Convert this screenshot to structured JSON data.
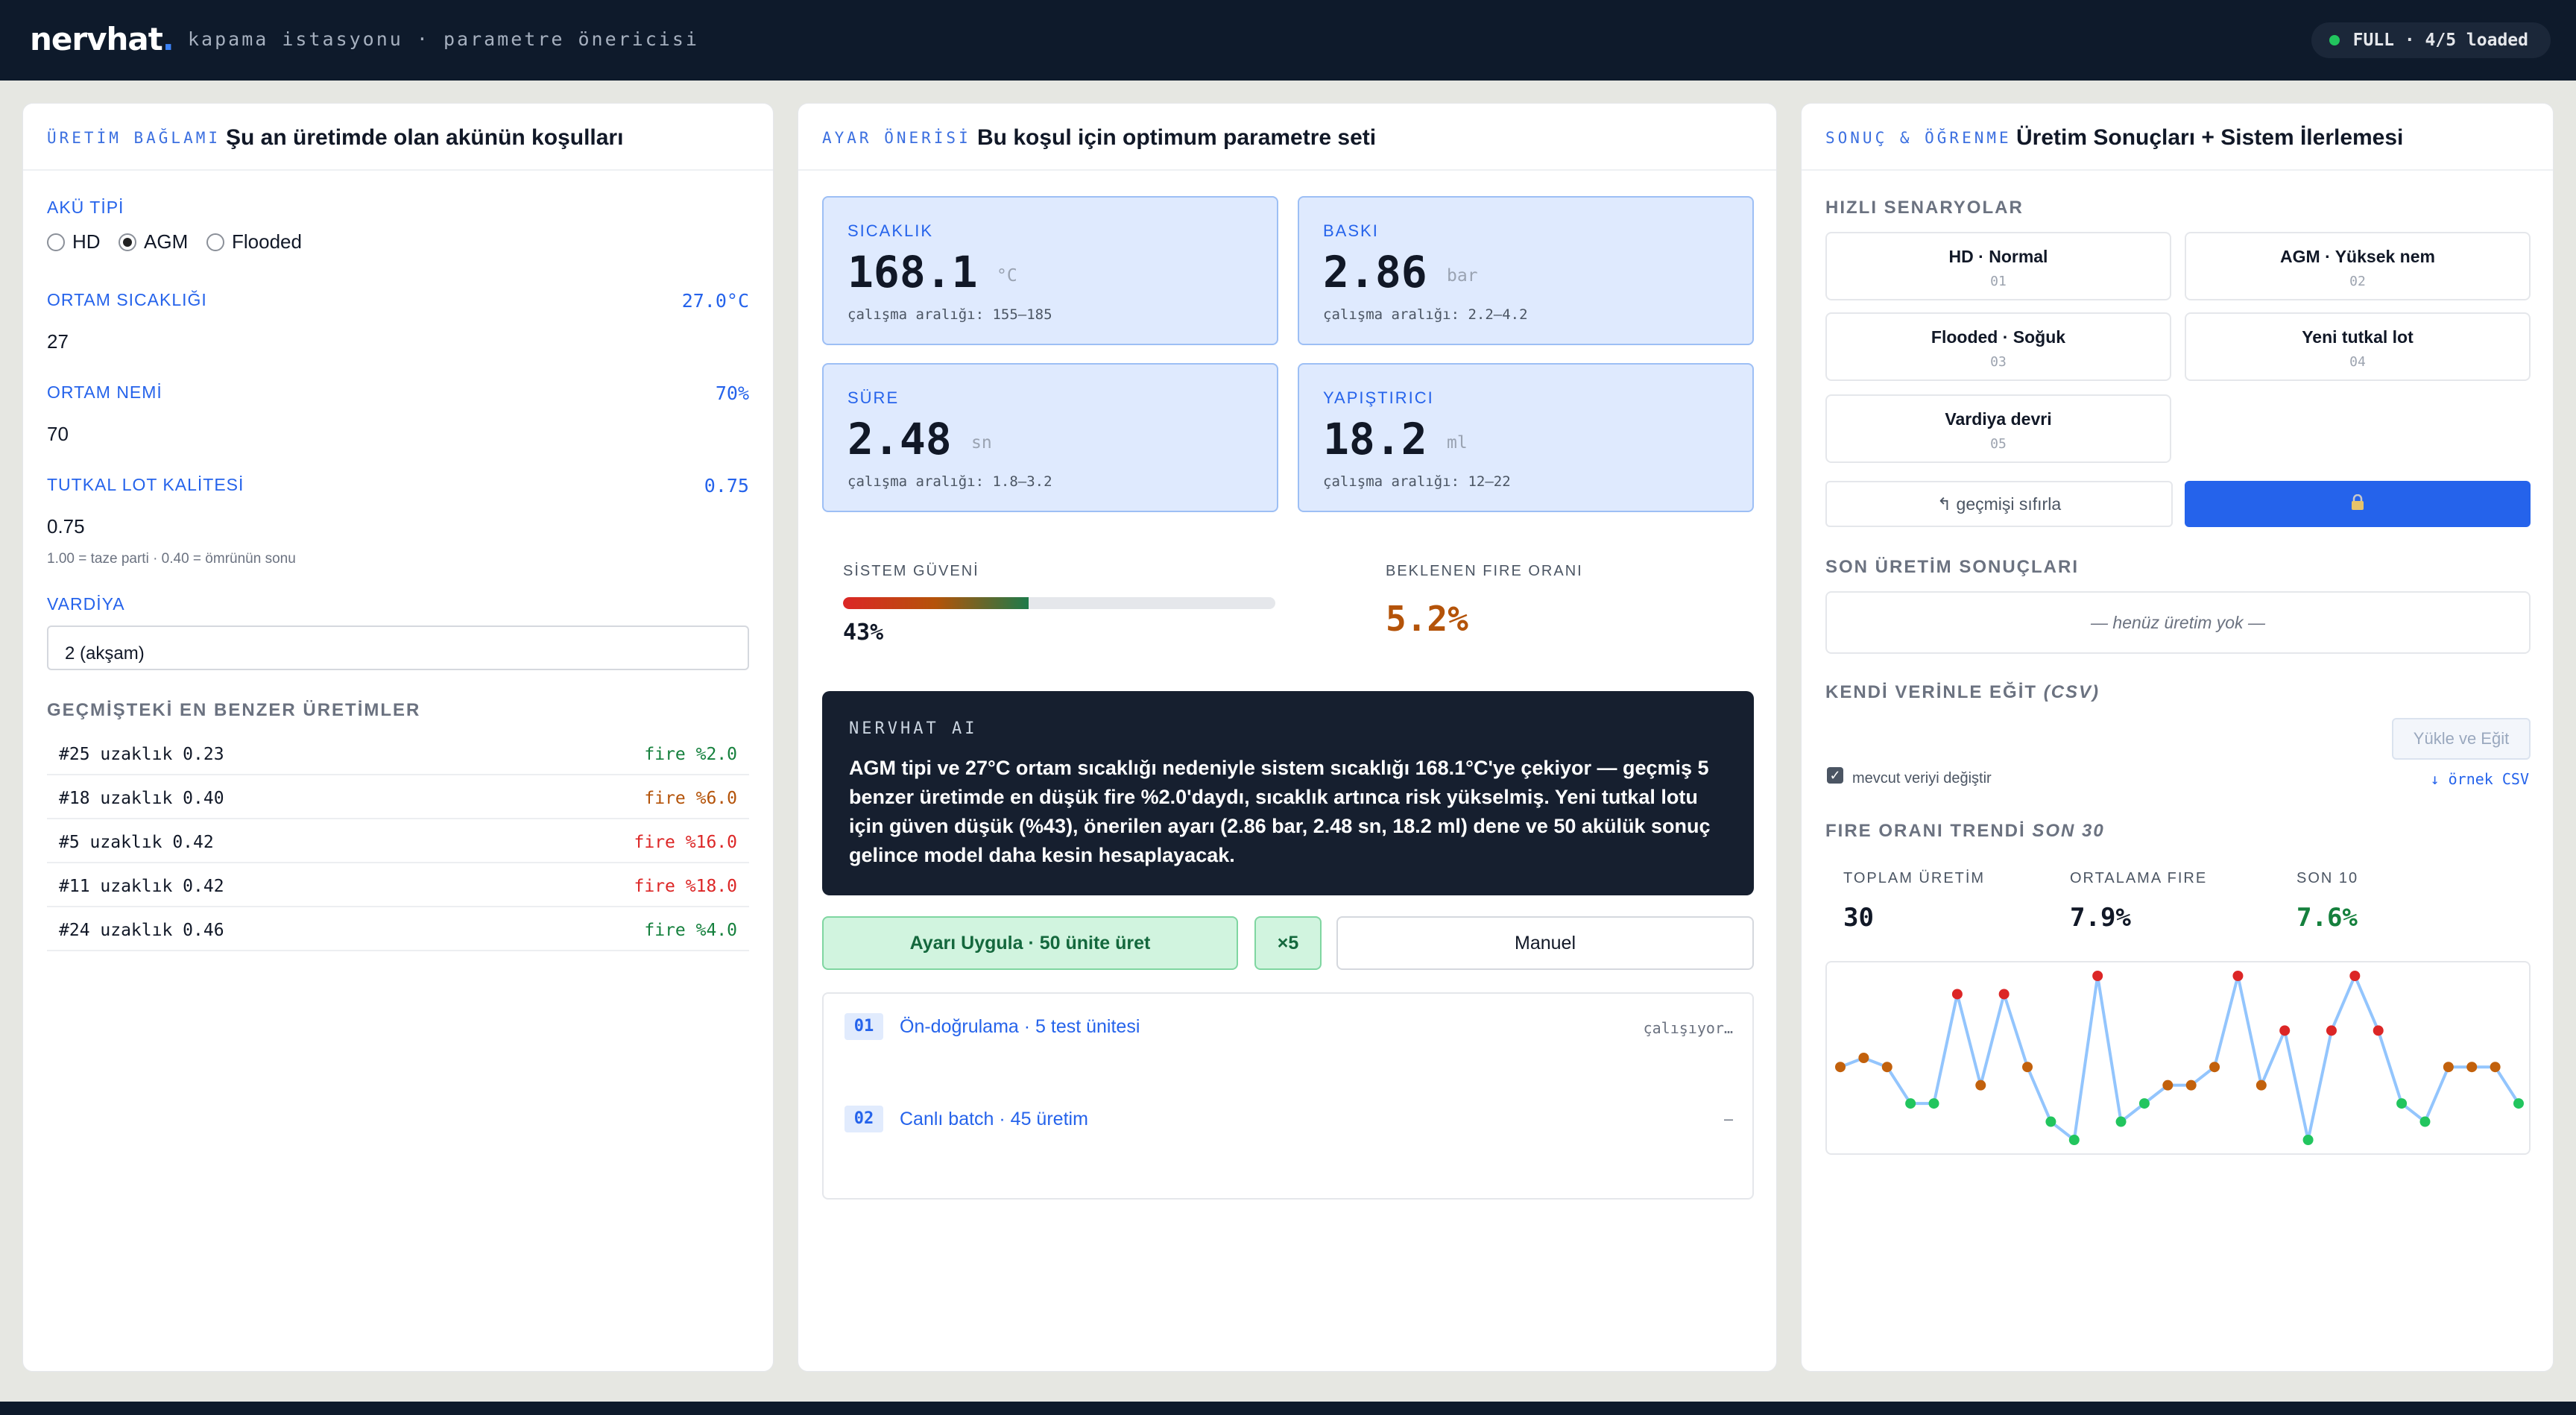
{
  "header": {
    "logo": "nervhat",
    "logo_dot": ".",
    "subtitle": "kapama istasyonu · parametre önericisi",
    "status": "FULL · 4/5 loaded"
  },
  "colors": {
    "accent": "#2563eb",
    "good": "#15803d",
    "warn": "#b45309",
    "bad": "#dc2626",
    "navbar": "#0e1a2b"
  },
  "context": {
    "kicker": "ÜRETİM BAĞLAMI",
    "title": "Şu an üretimde olan akünün koşulları",
    "battery_type_label": "AKÜ TİPİ",
    "battery_types": [
      {
        "label": "HD",
        "selected": false
      },
      {
        "label": "AGM",
        "selected": true
      },
      {
        "label": "Flooded",
        "selected": false
      }
    ],
    "temp_label": "ORTAM SICAKLIĞI",
    "temp_display": "27.0°C",
    "temp_value": "27",
    "humidity_label": "ORTAM NEMİ",
    "humidity_display": "70%",
    "humidity_value": "70",
    "glue_label": "TUTKAL LOT KALİTESİ",
    "glue_display": "0.75",
    "glue_value": "0.75",
    "glue_hint": "1.00 = taze parti · 0.40 = ömrünün sonu",
    "shift_label": "VARDİYA",
    "shift_value": "2 (akşam)",
    "similar_title": "GEÇMİŞTEKİ EN BENZER ÜRETİMLER",
    "similar": [
      {
        "label": "#25 uzaklık 0.23",
        "fire": "fire %2.0",
        "level": "good"
      },
      {
        "label": "#18 uzaklık 0.40",
        "fire": "fire %6.0",
        "level": "warn"
      },
      {
        "label": "#5 uzaklık 0.42",
        "fire": "fire %16.0",
        "level": "bad"
      },
      {
        "label": "#11 uzaklık 0.42",
        "fire": "fire %18.0",
        "level": "bad"
      },
      {
        "label": "#24 uzaklık 0.46",
        "fire": "fire %4.0",
        "level": "good"
      }
    ]
  },
  "recommendation": {
    "kicker": "AYAR ÖNERİSİ",
    "title": "Bu koşul için optimum parametre seti",
    "params": [
      {
        "key": "SICAKLIK",
        "value": "168.1",
        "unit": "°C",
        "range": "çalışma aralığı: 155–185"
      },
      {
        "key": "BASKI",
        "value": "2.86",
        "unit": "bar",
        "range": "çalışma aralığı: 2.2–4.2"
      },
      {
        "key": "SÜRE",
        "value": "2.48",
        "unit": "sn",
        "range": "çalışma aralığı: 1.8–3.2"
      },
      {
        "key": "YAPIŞTIRICI",
        "value": "18.2",
        "unit": "ml",
        "range": "çalışma aralığı: 12–22"
      }
    ],
    "confidence_label": "SİSTEM GÜVENİ",
    "confidence_value": "43%",
    "confidence_fraction": 0.43,
    "scrap_label": "BEKLENEN FIRE ORANI",
    "scrap_value": "5.2%",
    "ai_kicker": "NERVHAT AI",
    "ai_text": "AGM tipi ve 27°C ortam sıcaklığı nedeniyle sistem sıcaklığı 168.1°C'ye çekiyor — geçmiş 5 benzer üretimde en düşük fire %2.0'daydı, sıcaklık artınca risk yükselmiş. Yeni tutkal lotu için güven düşük (%43), önerilen ayarı (2.86 bar, 2.48 sn, 18.2 ml) dene ve 50 akülük sonuç gelince model daha kesin hesaplayacak.",
    "apply_button": "Ayarı Uygula · 50 ünite üret",
    "x5_button": "×5",
    "manual_button": "Manuel",
    "steps": [
      {
        "num": "01",
        "label": "Ön-doğrulama · 5 test ünitesi",
        "status": "çalışıyor…"
      },
      {
        "num": "02",
        "label": "Canlı batch · 45 üretim",
        "status": "–"
      }
    ]
  },
  "results": {
    "kicker": "SONUÇ & ÖĞRENME",
    "title": "Üretim Sonuçları + Sistem İlerlemesi",
    "scenarios_title": "HIZLI SENARYOLAR",
    "scenarios": [
      {
        "label": "HD · Normal",
        "num": "01"
      },
      {
        "label": "AGM · Yüksek nem",
        "num": "02"
      },
      {
        "label": "Flooded · Soğuk",
        "num": "03"
      },
      {
        "label": "Yeni tutkal lot",
        "num": "04"
      },
      {
        "label": "Vardiya devri",
        "num": "05"
      }
    ],
    "reset_button": "↰ geçmişi sıfırla",
    "lock_icon": "lock-icon",
    "recent_title": "SON ÜRETİM SONUÇLARI",
    "recent_empty": "— henüz üretim yok —",
    "train_title": "KENDİ VERİNLE EĞİT",
    "train_title_em": "(CSV)",
    "upload_button": "Yükle ve Eğit",
    "replace_label": "mevcut veriyi değiştir",
    "replace_checked": true,
    "sample_link": "↓ örnek CSV",
    "trend_title": "FIRE ORANI TRENDİ",
    "trend_title_em": "SON 30",
    "stats": [
      {
        "key": "TOPLAM ÜRETİM",
        "value": "30",
        "level": "neutral"
      },
      {
        "key": "ORTALAMA FIRE",
        "value": "7.9%",
        "level": "neutral"
      },
      {
        "key": "SON 10",
        "value": "7.6%",
        "level": "good"
      }
    ]
  },
  "chart_data": {
    "type": "line",
    "title": "FIRE ORANI TRENDİ SON 30",
    "xlabel": "",
    "ylabel": "",
    "ylim": [
      0,
      18
    ],
    "x": [
      1,
      2,
      3,
      4,
      5,
      6,
      7,
      8,
      9,
      10,
      11,
      12,
      13,
      14,
      15,
      16,
      17,
      18,
      19,
      20,
      21,
      22,
      23,
      24,
      25,
      26,
      27,
      28,
      29,
      30
    ],
    "series": [
      {
        "values": [
          8,
          9,
          8,
          4,
          4,
          16,
          6,
          16,
          8,
          2,
          0,
          18,
          2,
          4,
          6,
          6,
          8,
          18,
          6,
          12,
          0,
          12,
          18,
          12,
          4,
          2,
          8,
          8,
          8,
          4
        ]
      }
    ],
    "point_colors": {
      "low": "#22c55e",
      "mid": "#c2610c",
      "high": "#dc2626"
    }
  }
}
